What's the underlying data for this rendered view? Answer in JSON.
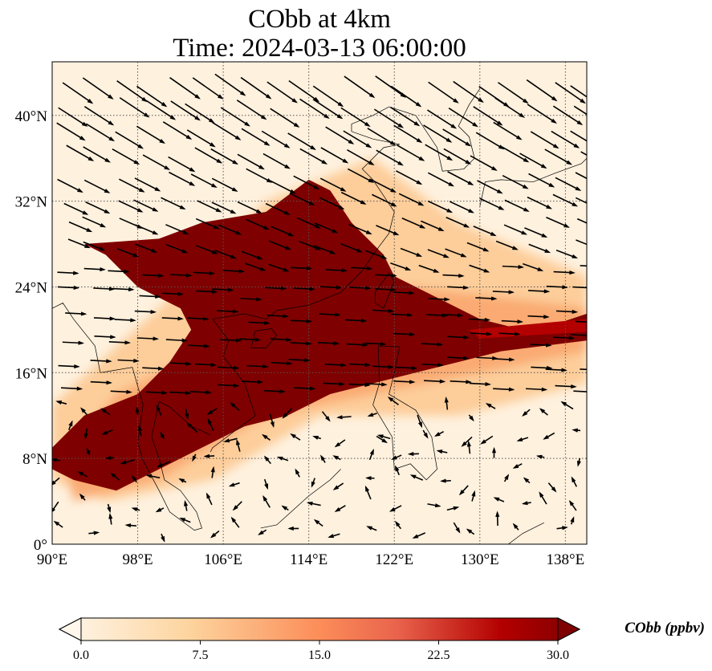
{
  "title": {
    "line1": "CObb at 4km",
    "line2": "Time: 2024-03-13 06:00:00"
  },
  "chart_data": {
    "type": "heatmap",
    "title": "CObb at 4km / Time: 2024-03-13 06:00:00",
    "variable": "CObb",
    "xlim": [
      90,
      140
    ],
    "ylim": [
      0,
      45
    ],
    "x_ticks": [
      90,
      98,
      106,
      114,
      122,
      130,
      138
    ],
    "x_tick_labels": [
      "90°E",
      "98°E",
      "106°E",
      "114°E",
      "122°E",
      "130°E",
      "138°E"
    ],
    "y_ticks": [
      0,
      8,
      16,
      24,
      32,
      40
    ],
    "y_tick_labels": [
      "0°",
      "8°N",
      "16°N",
      "24°N",
      "32°N",
      "40°N"
    ],
    "grid": true,
    "colorbar": {
      "label": "CObb (ppbv)",
      "range": [
        0,
        30
      ],
      "ticks": [
        0,
        7.5,
        15,
        22.5,
        30
      ],
      "tick_labels": [
        "0.0",
        "7.5",
        "15.0",
        "22.5",
        "30.0"
      ],
      "extend": "both",
      "colormap": [
        "#fff7ec",
        "#fdd49e",
        "#fc8d59",
        "#d7301f",
        "#b30000",
        "#7f0000"
      ]
    },
    "overlay": "wind vectors"
  }
}
